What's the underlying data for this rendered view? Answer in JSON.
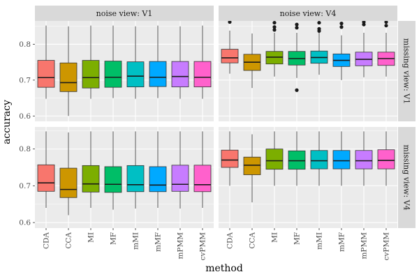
{
  "chart_data": {
    "type": "boxplot",
    "xlabel": "method",
    "ylabel": "accuracy",
    "categories": [
      "CDA",
      "CCA",
      "MI",
      "MF",
      "mMI",
      "mMF",
      "mPMM",
      "cvPMM"
    ],
    "colors": [
      "#F8766D",
      "#CD9600",
      "#7CAE00",
      "#00BE67",
      "#00BFC4",
      "#00A9FF",
      "#C77CFF",
      "#FF61CC"
    ],
    "yticks": [
      0.6,
      0.7,
      0.8
    ],
    "ylim_top": [
      0.585,
      0.865
    ],
    "ylim_bottom": [
      0.585,
      0.86
    ],
    "column_strips": [
      "noise view: V1",
      "noise view: V4"
    ],
    "row_strips": [
      "missing view: V1",
      "missing view: V4"
    ],
    "panels": [
      {
        "row": 0,
        "col": 0,
        "boxes": [
          {
            "lw": 0.648,
            "q1": 0.68,
            "med": 0.707,
            "q3": 0.755,
            "uw": 0.852,
            "outliers": []
          },
          {
            "lw": 0.6,
            "q1": 0.668,
            "med": 0.693,
            "q3": 0.748,
            "uw": 0.85,
            "outliers": []
          },
          {
            "lw": 0.648,
            "q1": 0.678,
            "med": 0.707,
            "q3": 0.755,
            "uw": 0.852,
            "outliers": []
          },
          {
            "lw": 0.65,
            "q1": 0.68,
            "med": 0.708,
            "q3": 0.753,
            "uw": 0.852,
            "outliers": []
          },
          {
            "lw": 0.648,
            "q1": 0.681,
            "med": 0.711,
            "q3": 0.751,
            "uw": 0.85,
            "outliers": []
          },
          {
            "lw": 0.65,
            "q1": 0.682,
            "med": 0.708,
            "q3": 0.752,
            "uw": 0.852,
            "outliers": []
          },
          {
            "lw": 0.648,
            "q1": 0.681,
            "med": 0.71,
            "q3": 0.752,
            "uw": 0.85,
            "outliers": []
          },
          {
            "lw": 0.648,
            "q1": 0.681,
            "med": 0.708,
            "q3": 0.752,
            "uw": 0.852,
            "outliers": []
          }
        ]
      },
      {
        "row": 0,
        "col": 1,
        "boxes": [
          {
            "lw": 0.718,
            "q1": 0.748,
            "med": 0.762,
            "q3": 0.786,
            "uw": 0.838,
            "outliers": [
              0.862
            ]
          },
          {
            "lw": 0.678,
            "q1": 0.727,
            "med": 0.75,
            "q3": 0.772,
            "uw": 0.83,
            "outliers": []
          },
          {
            "lw": 0.71,
            "q1": 0.745,
            "med": 0.764,
            "q3": 0.78,
            "uw": 0.832,
            "outliers": [
              0.86,
              0.848,
              0.84
            ]
          },
          {
            "lw": 0.706,
            "q1": 0.742,
            "med": 0.76,
            "q3": 0.78,
            "uw": 0.832,
            "outliers": [
              0.855,
              0.846,
              0.672
            ]
          },
          {
            "lw": 0.715,
            "q1": 0.747,
            "med": 0.763,
            "q3": 0.781,
            "uw": 0.832,
            "outliers": [
              0.86,
              0.843,
              0.837
            ]
          },
          {
            "lw": 0.7,
            "q1": 0.738,
            "med": 0.755,
            "q3": 0.773,
            "uw": 0.825,
            "outliers": [
              0.858,
              0.848
            ]
          },
          {
            "lw": 0.708,
            "q1": 0.74,
            "med": 0.758,
            "q3": 0.778,
            "uw": 0.832,
            "outliers": [
              0.862,
              0.855
            ]
          },
          {
            "lw": 0.71,
            "q1": 0.741,
            "med": 0.76,
            "q3": 0.778,
            "uw": 0.832,
            "outliers": [
              0.862,
              0.852
            ]
          }
        ]
      },
      {
        "row": 1,
        "col": 0,
        "boxes": [
          {
            "lw": 0.64,
            "q1": 0.685,
            "med": 0.708,
            "q3": 0.757,
            "uw": 0.848,
            "outliers": []
          },
          {
            "lw": 0.62,
            "q1": 0.668,
            "med": 0.69,
            "q3": 0.748,
            "uw": 0.845,
            "outliers": []
          },
          {
            "lw": 0.64,
            "q1": 0.683,
            "med": 0.705,
            "q3": 0.755,
            "uw": 0.848,
            "outliers": []
          },
          {
            "lw": 0.635,
            "q1": 0.682,
            "med": 0.704,
            "q3": 0.752,
            "uw": 0.848,
            "outliers": []
          },
          {
            "lw": 0.638,
            "q1": 0.684,
            "med": 0.703,
            "q3": 0.755,
            "uw": 0.848,
            "outliers": []
          },
          {
            "lw": 0.64,
            "q1": 0.684,
            "med": 0.702,
            "q3": 0.752,
            "uw": 0.848,
            "outliers": []
          },
          {
            "lw": 0.638,
            "q1": 0.685,
            "med": 0.704,
            "q3": 0.756,
            "uw": 0.848,
            "outliers": []
          },
          {
            "lw": 0.64,
            "q1": 0.684,
            "med": 0.703,
            "q3": 0.756,
            "uw": 0.848,
            "outliers": []
          }
        ]
      },
      {
        "row": 1,
        "col": 1,
        "boxes": [
          {
            "lw": 0.7,
            "q1": 0.75,
            "med": 0.77,
            "q3": 0.797,
            "uw": 0.848,
            "outliers": []
          },
          {
            "lw": 0.655,
            "q1": 0.73,
            "med": 0.756,
            "q3": 0.778,
            "uw": 0.84,
            "outliers": []
          },
          {
            "lw": 0.7,
            "q1": 0.745,
            "med": 0.768,
            "q3": 0.8,
            "uw": 0.848,
            "outliers": []
          },
          {
            "lw": 0.7,
            "q1": 0.745,
            "med": 0.768,
            "q3": 0.795,
            "uw": 0.848,
            "outliers": []
          },
          {
            "lw": 0.7,
            "q1": 0.746,
            "med": 0.768,
            "q3": 0.796,
            "uw": 0.848,
            "outliers": []
          },
          {
            "lw": 0.7,
            "q1": 0.746,
            "med": 0.768,
            "q3": 0.796,
            "uw": 0.848,
            "outliers": []
          },
          {
            "lw": 0.7,
            "q1": 0.746,
            "med": 0.768,
            "q3": 0.796,
            "uw": 0.848,
            "outliers": []
          },
          {
            "lw": 0.7,
            "q1": 0.746,
            "med": 0.769,
            "q3": 0.798,
            "uw": 0.848,
            "outliers": []
          }
        ]
      }
    ]
  }
}
